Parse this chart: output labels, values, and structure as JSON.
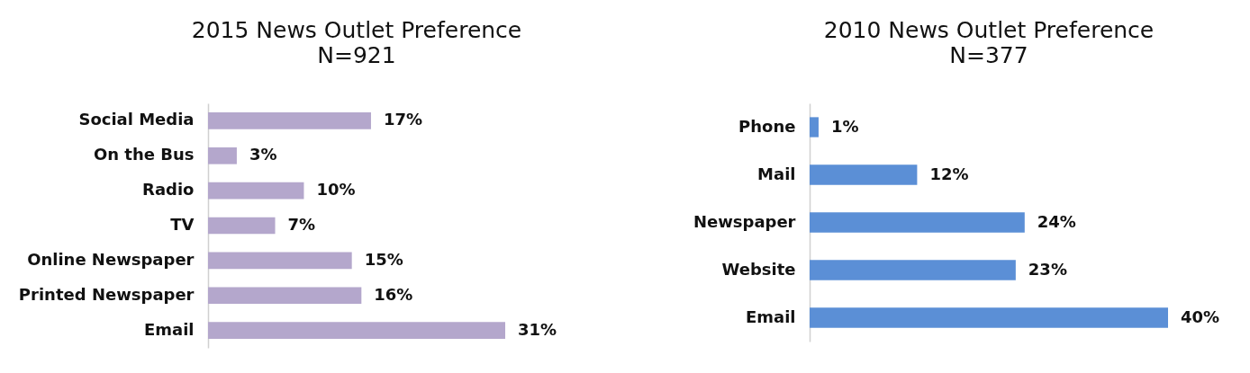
{
  "chart_data": [
    {
      "type": "bar",
      "orientation": "horizontal",
      "title": "2015 News Outlet Preference",
      "subtitle": "N=921",
      "categories": [
        "Social Media",
        "On the Bus",
        "Radio",
        "TV",
        "Online Newspaper",
        "Printed Newspaper",
        "Email"
      ],
      "values": [
        17,
        3,
        10,
        7,
        15,
        16,
        31
      ],
      "value_labels": [
        "17%",
        "3%",
        "10%",
        "7%",
        "15%",
        "16%",
        "31%"
      ],
      "color": "#b4a7cc"
    },
    {
      "type": "bar",
      "orientation": "horizontal",
      "title": "2010 News Outlet Preference",
      "subtitle": "N=377",
      "categories": [
        "Phone",
        "Mail",
        "Newspaper",
        "Website",
        "Email"
      ],
      "values": [
        1,
        12,
        24,
        23,
        40
      ],
      "value_labels": [
        "1%",
        "12%",
        "24%",
        "23%",
        "40%"
      ],
      "color": "#5b8fd6"
    }
  ]
}
